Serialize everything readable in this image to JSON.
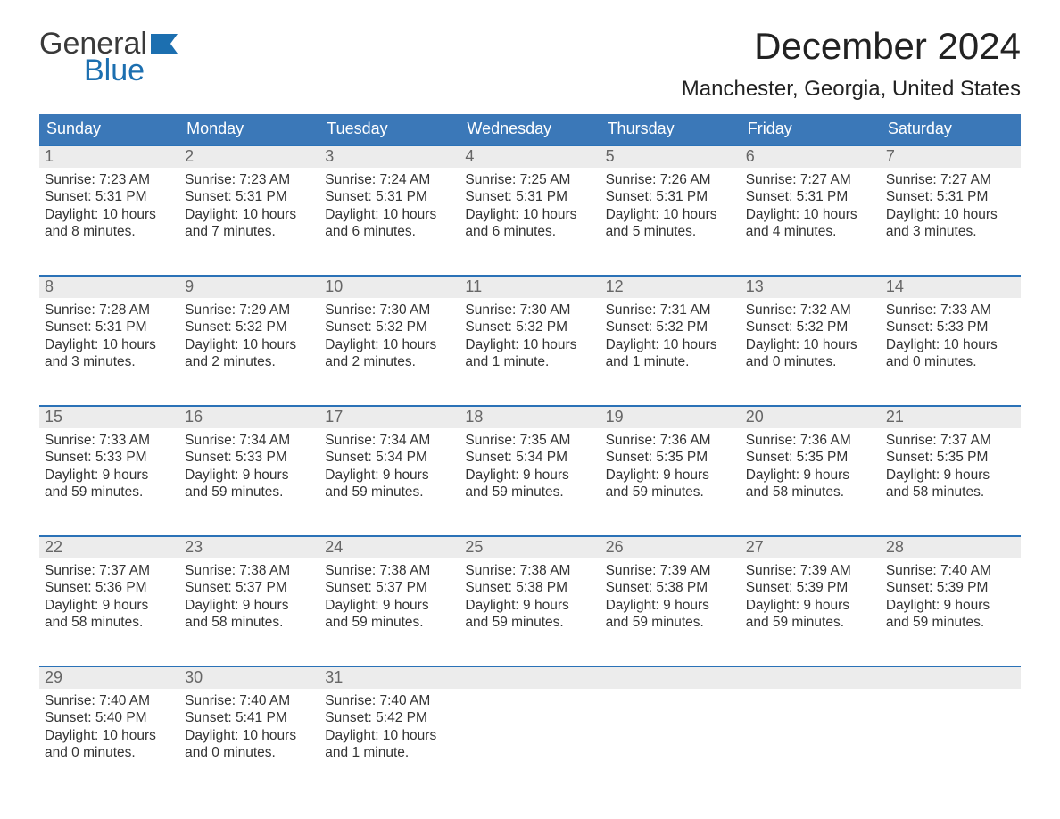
{
  "logo": {
    "line1": "General",
    "line2": "Blue"
  },
  "title": "December 2024",
  "location": "Manchester, Georgia, United States",
  "colors": {
    "header_blue": "#3b78b8",
    "accent_blue": "#2b72b7",
    "logo_dark": "#3a3a3a",
    "logo_blue": "#1c6fb0",
    "daynum_bg": "#ececec",
    "text": "#333333",
    "page_bg": "#ffffff"
  },
  "weekdays": [
    "Sunday",
    "Monday",
    "Tuesday",
    "Wednesday",
    "Thursday",
    "Friday",
    "Saturday"
  ],
  "weeks": [
    [
      {
        "n": "1",
        "sunrise": "Sunrise: 7:23 AM",
        "sunset": "Sunset: 5:31 PM",
        "dl1": "Daylight: 10 hours",
        "dl2": "and 8 minutes."
      },
      {
        "n": "2",
        "sunrise": "Sunrise: 7:23 AM",
        "sunset": "Sunset: 5:31 PM",
        "dl1": "Daylight: 10 hours",
        "dl2": "and 7 minutes."
      },
      {
        "n": "3",
        "sunrise": "Sunrise: 7:24 AM",
        "sunset": "Sunset: 5:31 PM",
        "dl1": "Daylight: 10 hours",
        "dl2": "and 6 minutes."
      },
      {
        "n": "4",
        "sunrise": "Sunrise: 7:25 AM",
        "sunset": "Sunset: 5:31 PM",
        "dl1": "Daylight: 10 hours",
        "dl2": "and 6 minutes."
      },
      {
        "n": "5",
        "sunrise": "Sunrise: 7:26 AM",
        "sunset": "Sunset: 5:31 PM",
        "dl1": "Daylight: 10 hours",
        "dl2": "and 5 minutes."
      },
      {
        "n": "6",
        "sunrise": "Sunrise: 7:27 AM",
        "sunset": "Sunset: 5:31 PM",
        "dl1": "Daylight: 10 hours",
        "dl2": "and 4 minutes."
      },
      {
        "n": "7",
        "sunrise": "Sunrise: 7:27 AM",
        "sunset": "Sunset: 5:31 PM",
        "dl1": "Daylight: 10 hours",
        "dl2": "and 3 minutes."
      }
    ],
    [
      {
        "n": "8",
        "sunrise": "Sunrise: 7:28 AM",
        "sunset": "Sunset: 5:31 PM",
        "dl1": "Daylight: 10 hours",
        "dl2": "and 3 minutes."
      },
      {
        "n": "9",
        "sunrise": "Sunrise: 7:29 AM",
        "sunset": "Sunset: 5:32 PM",
        "dl1": "Daylight: 10 hours",
        "dl2": "and 2 minutes."
      },
      {
        "n": "10",
        "sunrise": "Sunrise: 7:30 AM",
        "sunset": "Sunset: 5:32 PM",
        "dl1": "Daylight: 10 hours",
        "dl2": "and 2 minutes."
      },
      {
        "n": "11",
        "sunrise": "Sunrise: 7:30 AM",
        "sunset": "Sunset: 5:32 PM",
        "dl1": "Daylight: 10 hours",
        "dl2": "and 1 minute."
      },
      {
        "n": "12",
        "sunrise": "Sunrise: 7:31 AM",
        "sunset": "Sunset: 5:32 PM",
        "dl1": "Daylight: 10 hours",
        "dl2": "and 1 minute."
      },
      {
        "n": "13",
        "sunrise": "Sunrise: 7:32 AM",
        "sunset": "Sunset: 5:32 PM",
        "dl1": "Daylight: 10 hours",
        "dl2": "and 0 minutes."
      },
      {
        "n": "14",
        "sunrise": "Sunrise: 7:33 AM",
        "sunset": "Sunset: 5:33 PM",
        "dl1": "Daylight: 10 hours",
        "dl2": "and 0 minutes."
      }
    ],
    [
      {
        "n": "15",
        "sunrise": "Sunrise: 7:33 AM",
        "sunset": "Sunset: 5:33 PM",
        "dl1": "Daylight: 9 hours",
        "dl2": "and 59 minutes."
      },
      {
        "n": "16",
        "sunrise": "Sunrise: 7:34 AM",
        "sunset": "Sunset: 5:33 PM",
        "dl1": "Daylight: 9 hours",
        "dl2": "and 59 minutes."
      },
      {
        "n": "17",
        "sunrise": "Sunrise: 7:34 AM",
        "sunset": "Sunset: 5:34 PM",
        "dl1": "Daylight: 9 hours",
        "dl2": "and 59 minutes."
      },
      {
        "n": "18",
        "sunrise": "Sunrise: 7:35 AM",
        "sunset": "Sunset: 5:34 PM",
        "dl1": "Daylight: 9 hours",
        "dl2": "and 59 minutes."
      },
      {
        "n": "19",
        "sunrise": "Sunrise: 7:36 AM",
        "sunset": "Sunset: 5:35 PM",
        "dl1": "Daylight: 9 hours",
        "dl2": "and 59 minutes."
      },
      {
        "n": "20",
        "sunrise": "Sunrise: 7:36 AM",
        "sunset": "Sunset: 5:35 PM",
        "dl1": "Daylight: 9 hours",
        "dl2": "and 58 minutes."
      },
      {
        "n": "21",
        "sunrise": "Sunrise: 7:37 AM",
        "sunset": "Sunset: 5:35 PM",
        "dl1": "Daylight: 9 hours",
        "dl2": "and 58 minutes."
      }
    ],
    [
      {
        "n": "22",
        "sunrise": "Sunrise: 7:37 AM",
        "sunset": "Sunset: 5:36 PM",
        "dl1": "Daylight: 9 hours",
        "dl2": "and 58 minutes."
      },
      {
        "n": "23",
        "sunrise": "Sunrise: 7:38 AM",
        "sunset": "Sunset: 5:37 PM",
        "dl1": "Daylight: 9 hours",
        "dl2": "and 58 minutes."
      },
      {
        "n": "24",
        "sunrise": "Sunrise: 7:38 AM",
        "sunset": "Sunset: 5:37 PM",
        "dl1": "Daylight: 9 hours",
        "dl2": "and 59 minutes."
      },
      {
        "n": "25",
        "sunrise": "Sunrise: 7:38 AM",
        "sunset": "Sunset: 5:38 PM",
        "dl1": "Daylight: 9 hours",
        "dl2": "and 59 minutes."
      },
      {
        "n": "26",
        "sunrise": "Sunrise: 7:39 AM",
        "sunset": "Sunset: 5:38 PM",
        "dl1": "Daylight: 9 hours",
        "dl2": "and 59 minutes."
      },
      {
        "n": "27",
        "sunrise": "Sunrise: 7:39 AM",
        "sunset": "Sunset: 5:39 PM",
        "dl1": "Daylight: 9 hours",
        "dl2": "and 59 minutes."
      },
      {
        "n": "28",
        "sunrise": "Sunrise: 7:40 AM",
        "sunset": "Sunset: 5:39 PM",
        "dl1": "Daylight: 9 hours",
        "dl2": "and 59 minutes."
      }
    ],
    [
      {
        "n": "29",
        "sunrise": "Sunrise: 7:40 AM",
        "sunset": "Sunset: 5:40 PM",
        "dl1": "Daylight: 10 hours",
        "dl2": "and 0 minutes."
      },
      {
        "n": "30",
        "sunrise": "Sunrise: 7:40 AM",
        "sunset": "Sunset: 5:41 PM",
        "dl1": "Daylight: 10 hours",
        "dl2": "and 0 minutes."
      },
      {
        "n": "31",
        "sunrise": "Sunrise: 7:40 AM",
        "sunset": "Sunset: 5:42 PM",
        "dl1": "Daylight: 10 hours",
        "dl2": "and 1 minute."
      },
      null,
      null,
      null,
      null
    ]
  ]
}
